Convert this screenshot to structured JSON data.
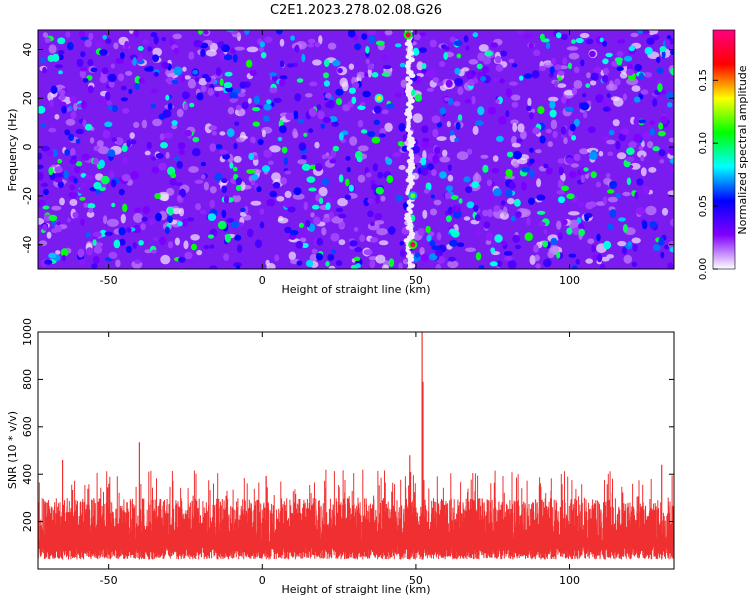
{
  "figure_title": "C2E1.2023.278.02.08.G26",
  "chart_data": [
    {
      "type": "heatmap",
      "xlabel": "Height of straight line (km)",
      "ylabel": "Frequency (Hz)",
      "xlim": [
        -73,
        134
      ],
      "ylim": [
        -50,
        48
      ],
      "x_ticks": [
        "-50",
        "0",
        "50",
        "100"
      ],
      "y_ticks": [
        "-40",
        "-20",
        "0",
        "20",
        "40"
      ],
      "colorbar": {
        "label": "Normalized spectral amplitude",
        "range": [
          0.0,
          0.19
        ],
        "ticks": [
          "0.00",
          "0.05",
          "0.10",
          "0.15"
        ],
        "colors": [
          "#ffffff",
          "#8000ff",
          "#0000ff",
          "#00ffff",
          "#00ff00",
          "#ffff00",
          "#ff0000",
          "#ff0080"
        ]
      },
      "features": [
        {
          "description_value": "vertical streak",
          "x": 48,
          "y_range": [
            -50,
            48
          ]
        },
        {
          "x": 47.5,
          "y": 46,
          "amplitude": 0.18
        },
        {
          "x": 49,
          "y": -40,
          "amplitude": 0.18
        },
        {
          "x": 38,
          "y": 20,
          "amplitude": 0.14
        },
        {
          "x": 49,
          "y": -20,
          "amplitude": 0.12
        }
      ]
    },
    {
      "type": "line",
      "xlabel": "Height of straight line (km)",
      "ylabel": "SNR (10 * v/v)",
      "xlim": [
        -73,
        134
      ],
      "ylim": [
        0,
        1000
      ],
      "x_ticks": [
        "-50",
        "0",
        "50",
        "100"
      ],
      "y_ticks": [
        "200",
        "400",
        "600",
        "800",
        "1000"
      ],
      "series_color": "#f03030",
      "baseline_band": [
        40,
        300
      ],
      "peaks": [
        {
          "x": 52,
          "y": 1000
        },
        {
          "x": 52.3,
          "y": 790
        },
        {
          "x": -40,
          "y": 535
        },
        {
          "x": 48,
          "y": 480
        },
        {
          "x": -65,
          "y": 460
        },
        {
          "x": 130,
          "y": 440
        }
      ]
    }
  ]
}
